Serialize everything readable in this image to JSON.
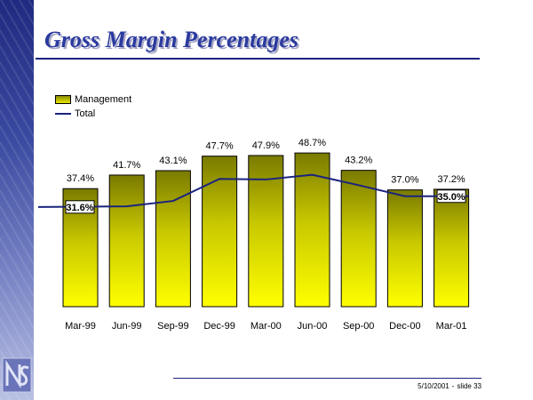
{
  "title": "Gross Margin Percentages",
  "legend": {
    "management": "Management",
    "total": "Total"
  },
  "footer": {
    "date": "5/10/2001",
    "separator": "-",
    "slide": "slide 33"
  },
  "colors": {
    "bar_top": "#7a7a00",
    "bar_bottom": "#ffff00",
    "line": "#1a237e",
    "title": "#2a3a9e"
  },
  "chart_data": {
    "type": "bar",
    "title": "Gross Margin Percentages",
    "categories": [
      "Mar-99",
      "Jun-99",
      "Sep-99",
      "Dec-99",
      "Mar-00",
      "Jun-00",
      "Sep-00",
      "Dec-00",
      "Mar-01"
    ],
    "series": [
      {
        "name": "Management",
        "type": "bar",
        "values": [
          37.4,
          41.7,
          43.1,
          47.7,
          47.9,
          48.7,
          43.2,
          37.0,
          37.2
        ],
        "labels": [
          "37.4%",
          "41.7%",
          "43.1%",
          "47.7%",
          "47.9%",
          "48.7%",
          "43.2%",
          "37.0%",
          "37.2%"
        ]
      },
      {
        "name": "Total",
        "type": "line",
        "values": [
          31.6,
          31.8,
          33.5,
          40.5,
          40.3,
          41.8,
          38.5,
          35.0,
          35.0
        ],
        "labels": [
          "31.6%",
          null,
          null,
          null,
          null,
          null,
          null,
          null,
          "35.0%"
        ]
      }
    ],
    "ylim": [
      0,
      50
    ],
    "xlabel": "",
    "ylabel": "",
    "grid": false,
    "legend_position": "top-left"
  }
}
